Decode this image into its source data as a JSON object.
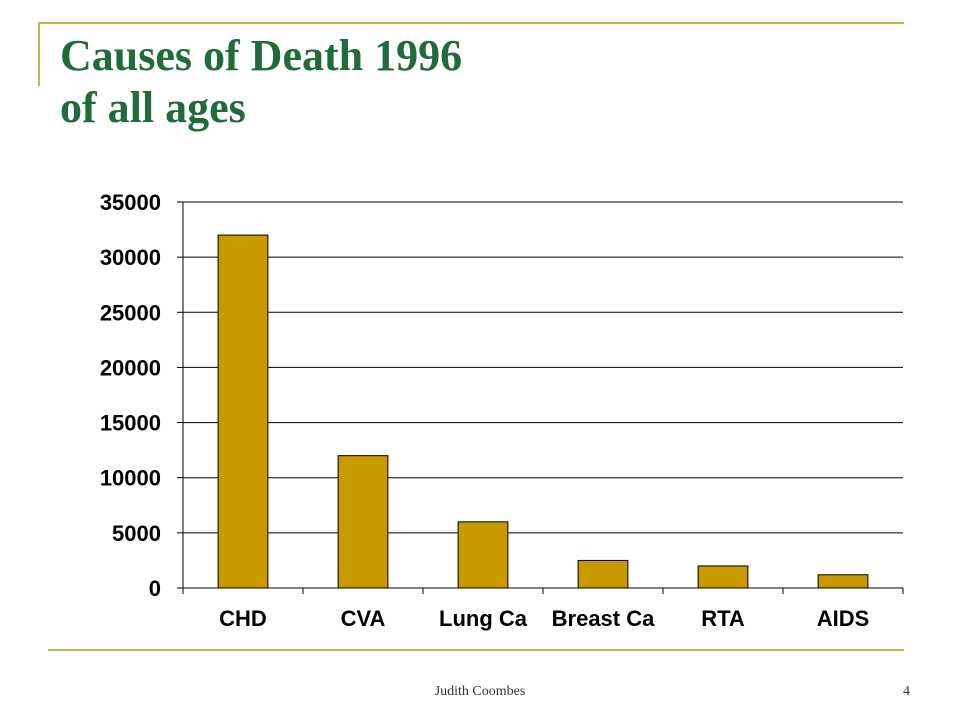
{
  "slide": {
    "title_line1": "Causes of Death 1996",
    "title_line2": "of all ages",
    "footer_author": "Judith Coombes",
    "page_number": "4"
  },
  "colors": {
    "bar": "#c89a00",
    "title": "#1f6b3a",
    "frame": "#c8b24a"
  },
  "chart_data": {
    "type": "bar",
    "title": "",
    "xlabel": "",
    "ylabel": "",
    "categories": [
      "CHD",
      "CVA",
      "Lung Ca",
      "Breast Ca",
      "RTA",
      "AIDS"
    ],
    "values": [
      32000,
      12000,
      6000,
      2500,
      2000,
      1200
    ],
    "ylim": [
      0,
      35000
    ],
    "yticks": [
      "0",
      "5000",
      "10000",
      "15000",
      "20000",
      "25000",
      "30000",
      "35000"
    ],
    "grid": true,
    "legend": "none"
  }
}
